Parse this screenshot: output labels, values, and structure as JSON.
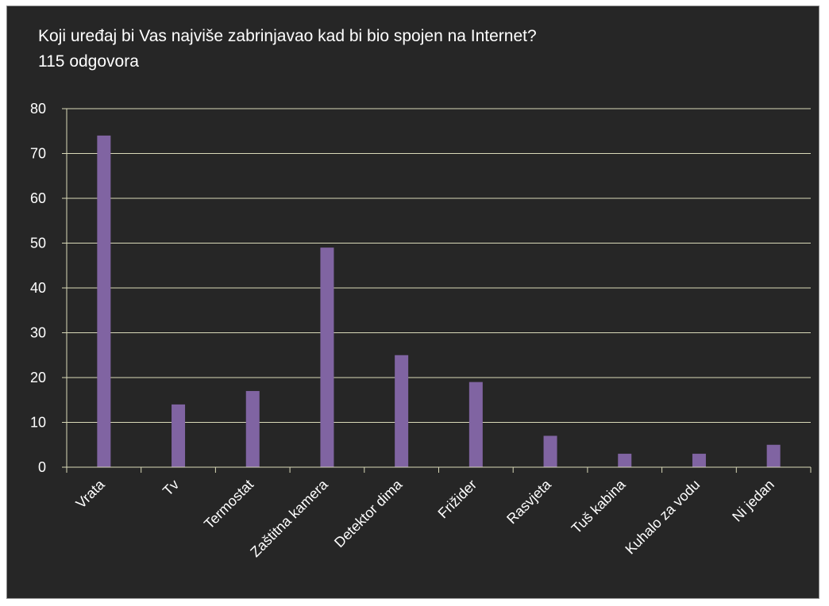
{
  "chart_data": {
    "type": "bar",
    "title": "Koji uređaj bi Vas najviše zabrinjavao kad bi bio spojen na Internet?",
    "subtitle": "115 odgovora",
    "categories": [
      "Vrata",
      "Tv",
      "Termostat",
      "Zaštitna kamera",
      "Detektor dima",
      "Frižider",
      "Rasvjeta",
      "Tuš kabina",
      "Kuhalo za vodu",
      "Ni jedan"
    ],
    "series": [
      {
        "values": [
          74,
          14,
          17,
          49,
          25,
          19,
          7,
          3,
          3,
          5
        ]
      }
    ],
    "ylim": [
      0,
      80
    ],
    "yticks": [
      0,
      10,
      20,
      30,
      40,
      50,
      60,
      70,
      80
    ],
    "grid": true,
    "bar_color": "#8064a2",
    "grid_color": "#d9d9b8",
    "background": "#262626"
  }
}
